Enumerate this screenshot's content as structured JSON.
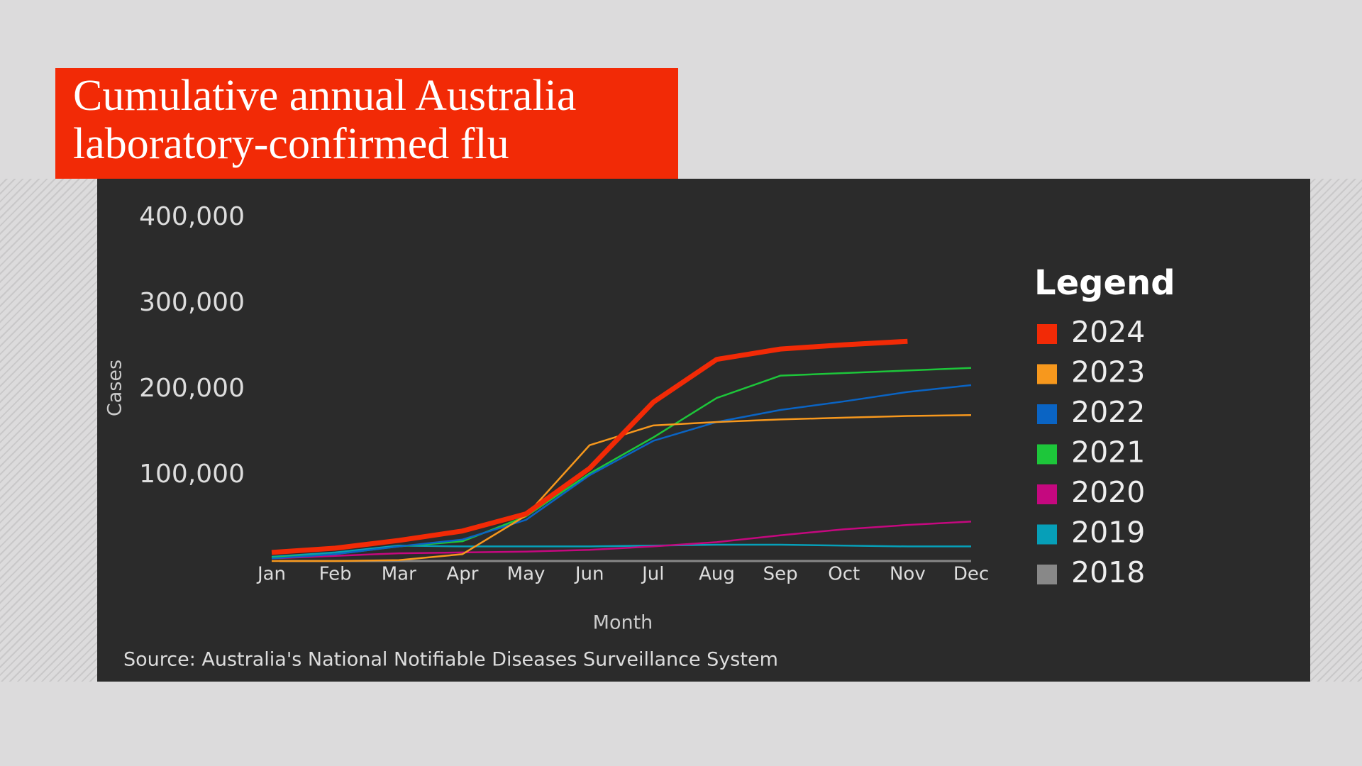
{
  "chart_data": {
    "type": "line",
    "title": "Cumulative annual Australia laboratory-confirmed flu",
    "x_label": "Month",
    "y_label": "Cases",
    "source": "Source: Australia's National Notifiable Diseases Surveillance System",
    "legend_title": "Legend",
    "legend_position": "right",
    "categories": [
      "Jan",
      "Feb",
      "Mar",
      "Apr",
      "May",
      "Jun",
      "Jul",
      "Aug",
      "Sep",
      "Oct",
      "Nov",
      "Dec"
    ],
    "ylim": [
      0,
      400000
    ],
    "yticks": [
      {
        "value": 100000,
        "label": "100,000"
      },
      {
        "value": 200000,
        "label": "200,000"
      },
      {
        "value": 300000,
        "label": "300,000"
      },
      {
        "value": 400000,
        "label": "400,000"
      }
    ],
    "series": [
      {
        "name": "2024",
        "color": "#f22a06",
        "values": [
          10000,
          15000,
          24000,
          35000,
          55000,
          108000,
          185000,
          235000,
          247000,
          252000,
          256000,
          null
        ]
      },
      {
        "name": "2023",
        "color": "#f7981d",
        "values": [
          0,
          0,
          1000,
          8000,
          53000,
          135000,
          158000,
          162000,
          165000,
          167000,
          169000,
          170000
        ]
      },
      {
        "name": "2022",
        "color": "#0a64c4",
        "values": [
          3000,
          8000,
          17000,
          25000,
          48000,
          100000,
          140000,
          162000,
          176000,
          186000,
          197000,
          205000
        ]
      },
      {
        "name": "2021",
        "color": "#1dc63a",
        "values": [
          4000,
          8000,
          17000,
          23000,
          52000,
          102000,
          144000,
          190000,
          216000,
          219000,
          222000,
          225000
        ]
      },
      {
        "name": "2020",
        "color": "#c5087f",
        "values": [
          3000,
          6000,
          9000,
          10000,
          11000,
          13000,
          17000,
          22000,
          30000,
          37000,
          42000,
          46000
        ]
      },
      {
        "name": "2019",
        "color": "#069fb8",
        "values": [
          5000,
          10000,
          18000,
          17000,
          17000,
          17000,
          18000,
          19000,
          19000,
          18000,
          17000,
          17000
        ]
      },
      {
        "name": "2018",
        "color": "#888888",
        "values": [
          null,
          null,
          null,
          null,
          null,
          null,
          null,
          null,
          null,
          null,
          null,
          null
        ]
      }
    ]
  }
}
